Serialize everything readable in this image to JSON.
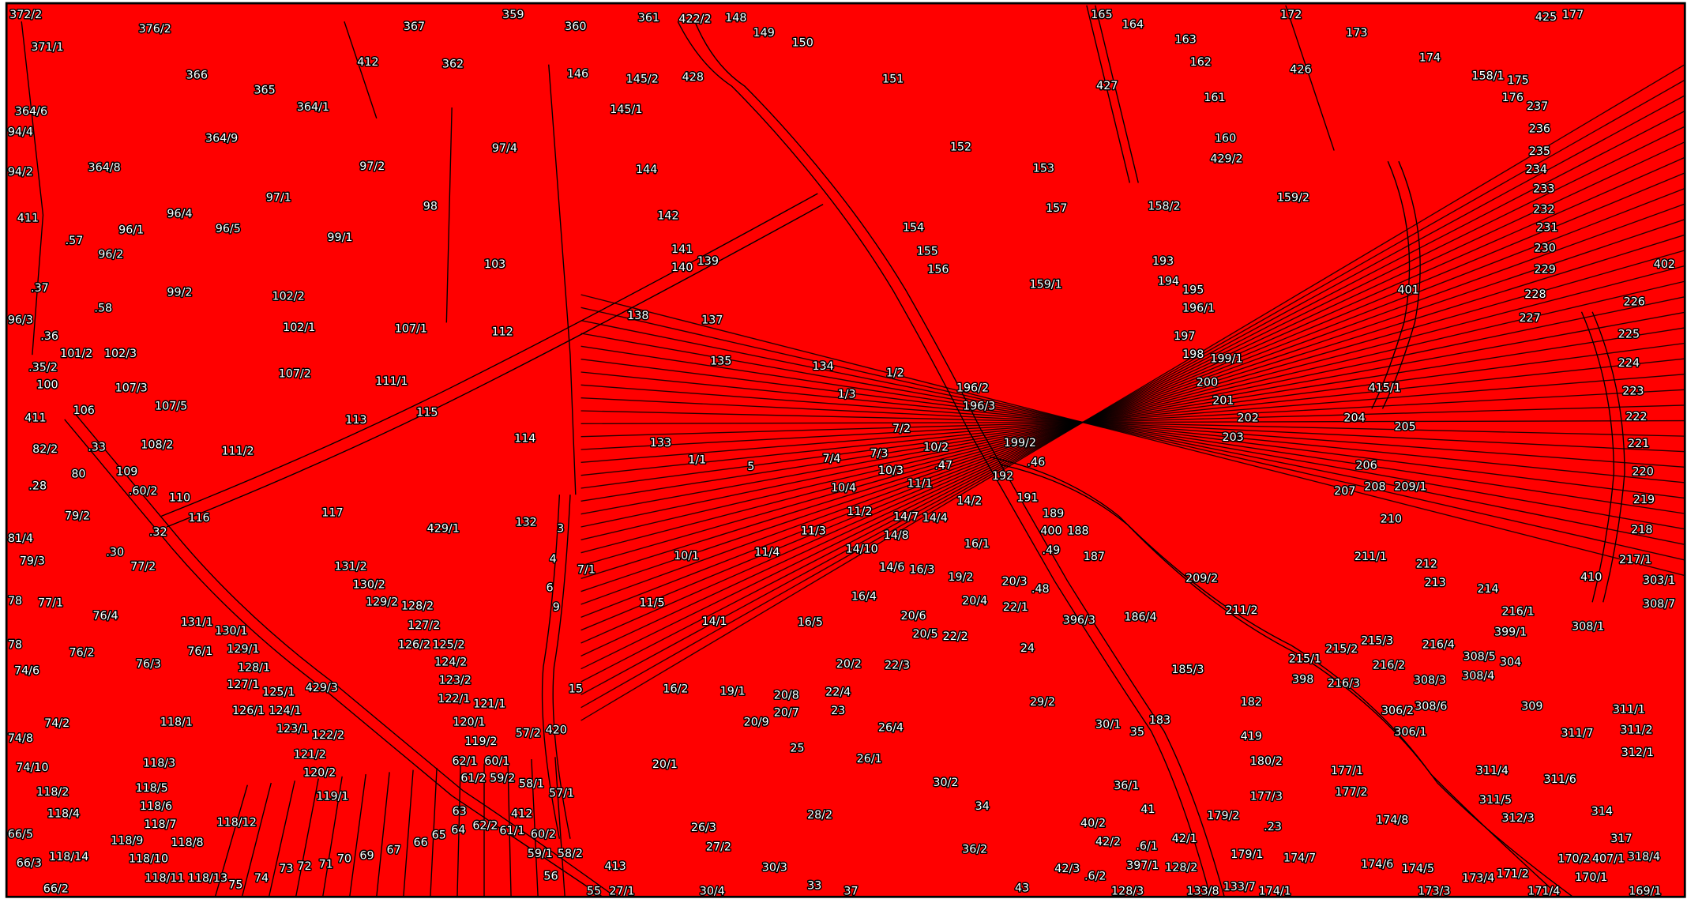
{
  "parcels": [
    "372/2",
    "371/1",
    "376/2",
    "367",
    "359",
    "360",
    "361",
    "422/2",
    "148",
    "149",
    "150",
    "165",
    "164",
    "163",
    "162",
    "172",
    "173",
    "425",
    "177",
    "174",
    "158/1",
    "175",
    "176",
    "237",
    "236",
    "235",
    "234",
    "233",
    "232",
    "231",
    "230",
    "229",
    "228",
    "227",
    "402",
    "226",
    "225",
    "224",
    "223",
    "222",
    "221",
    "220",
    "219",
    "218",
    "217/1",
    "303/1",
    "308/7",
    "410",
    "366",
    "365",
    "412",
    "362",
    "146",
    "145/2",
    "428",
    "151",
    "427",
    "161",
    "426",
    "364/6",
    "94/4",
    "364/1",
    "364/9",
    "145/1",
    "97/4",
    "152",
    "160",
    "429/2",
    "153",
    "94/2",
    "364/8",
    "97/2",
    "144",
    "97/1",
    "98",
    "157",
    "158/2",
    "159/2",
    "411",
    "96/4",
    "96/5",
    "96/1",
    ".57",
    "96/2",
    "99/1",
    "142",
    "154",
    "155",
    "141",
    "140",
    "139",
    "156",
    "103",
    "193",
    "194",
    "195",
    "401",
    "159/1",
    "196/1",
    ".37",
    "99/2",
    "102/2",
    ".58",
    "138",
    "137",
    "96/3",
    ".36",
    "102/1",
    "107/1",
    "112",
    "197",
    "198",
    "199/1",
    "101/2",
    "102/3",
    "135",
    "134",
    "1/2",
    ".35/2",
    "100",
    "107/2",
    "111/1",
    "200",
    "415/1",
    "107/3",
    "1/3",
    "196/2",
    "196/3",
    "201",
    "107/5",
    "106",
    "411",
    "113",
    "115",
    "202",
    "204",
    "205",
    "82/2",
    ".33",
    "108/2",
    "111/2",
    "114",
    "133",
    "7/2",
    "203",
    "199/2",
    "10/2",
    "7/4",
    "7/3",
    "1/1",
    ".47",
    ".46",
    "80",
    "109",
    "5",
    "10/3",
    "192",
    "206",
    ".28",
    ".60/2",
    "11/1",
    "10/4",
    "207",
    "208",
    "209/1",
    "110",
    "191",
    "14/2",
    "79/2",
    "116",
    "117",
    "11/2",
    "14/7",
    "14/4",
    "189",
    "132",
    "3",
    "210",
    "429/1",
    ".32",
    "81/4",
    "11/3",
    "14/8",
    "400",
    "188",
    "16/1",
    ".30",
    "79/3",
    "14/10",
    ".49",
    "187",
    "211/1",
    "212",
    "4",
    "10/1",
    "11/4",
    "131/2",
    "77/2",
    "7/1",
    "14/6",
    "16/3",
    "19/2",
    "20/3",
    "209/2",
    "213",
    "214",
    "130/2",
    ".48",
    "6",
    "78",
    "77/1",
    "129/2",
    "128/2",
    "11/5",
    "16/4",
    "20/4",
    "22/1",
    "9",
    "216/1",
    "76/4",
    "20/6",
    "396/3",
    "186/4",
    "211/2",
    "131/1",
    "127/2",
    "14/1",
    "16/5",
    "399/1",
    "308/1",
    "130/1",
    "20/5",
    "22/2",
    "78",
    "126/2",
    "125/2",
    "215/3",
    "215/2",
    "216/4",
    "76/2",
    "76/1",
    "129/1",
    "24",
    "215/1",
    "308/5",
    "304",
    "124/2",
    "76/3",
    "128/1",
    "20/2",
    "22/3",
    "216/2",
    "185/3",
    "74/6",
    "123/2",
    "398",
    "216/3",
    "308/3",
    "308/4",
    "127/1",
    "15",
    "16/2",
    "19/1",
    "20/8",
    "22/4",
    "125/1",
    "429/3",
    "182",
    "122/1",
    "121/1",
    "29/2",
    "309",
    "311/1",
    "306/2",
    "308/6",
    "74/2",
    "126/1",
    "124/1",
    "23",
    "20/7",
    "118/1",
    "120/1",
    "20/9",
    "183",
    "30/1",
    "26/4",
    "57/2",
    "420",
    "123/1",
    "35",
    "311/2",
    "306/1",
    "311/7",
    "122/2",
    "419",
    "74/8",
    "119/2",
    "25",
    "121/2",
    "312/1",
    "62/1",
    "60/1",
    "26/1",
    "180/2",
    "118/3",
    "20/1",
    "74/10",
    "120/2",
    "177/1",
    "311/4",
    "61/2",
    "59/2",
    "58/1",
    "30/2",
    "311/6",
    "118/5",
    "36/1",
    "57/1",
    "177/2",
    "118/2",
    "119/1",
    "177/3",
    "311/5",
    "118/6",
    "34",
    "41",
    "63",
    "412",
    "118/4",
    "28/2",
    "179/2",
    "312/3",
    "314",
    "118/7",
    "118/12",
    "62/2",
    "26/3",
    "40/2",
    ".23",
    "174/8",
    "64",
    "61/1",
    "65",
    "60/2",
    "66/5",
    "66",
    "67",
    "118/9",
    "118/8",
    "42/2",
    ".6/1",
    "42/1",
    "317",
    "69",
    "70",
    "27/2",
    "59/1",
    "58/2",
    "36/2",
    "179/1",
    "174/7",
    "170/2",
    "407/1",
    "318/4",
    "66/3",
    "118/14",
    "118/10",
    "71",
    "72",
    "73",
    "413",
    "30/3",
    "397/1",
    "128/2",
    "42/3",
    ".6/2",
    "174/6",
    "174/5",
    "173/4",
    "171/2",
    "56",
    "118/11",
    "118/13",
    "74",
    "75",
    "66/2",
    "55",
    "27/1",
    "30/4",
    "33",
    "37",
    "43",
    "128/3",
    "133/8",
    "133/7",
    "174/1",
    "173/3",
    "171/4",
    "170/1",
    "169/1"
  ]
}
